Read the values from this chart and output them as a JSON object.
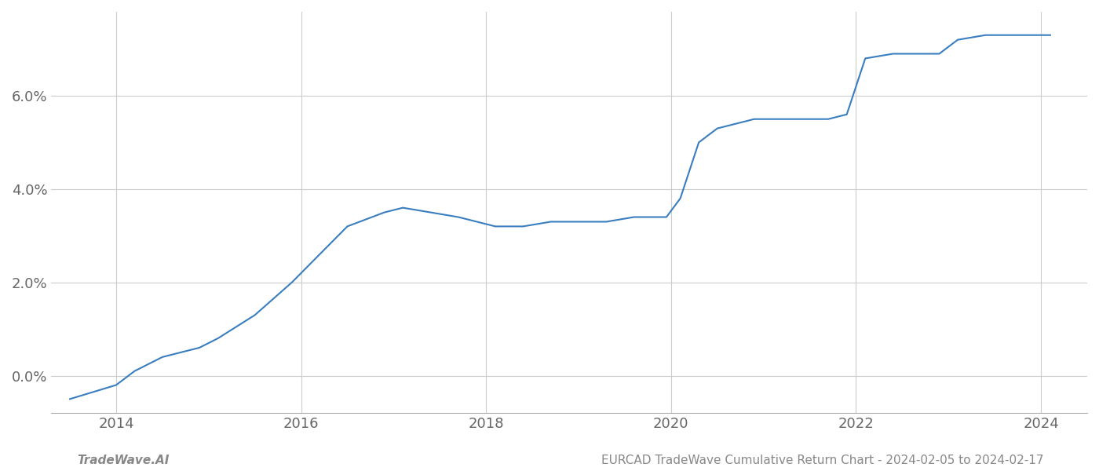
{
  "x_years": [
    2013.5,
    2014.0,
    2014.2,
    2014.5,
    2014.9,
    2015.1,
    2015.5,
    2015.9,
    2016.2,
    2016.5,
    2016.9,
    2017.1,
    2017.4,
    2017.7,
    2017.9,
    2018.1,
    2018.4,
    2018.7,
    2019.0,
    2019.3,
    2019.6,
    2019.8,
    2019.95,
    2020.1,
    2020.3,
    2020.5,
    2020.7,
    2020.9,
    2021.2,
    2021.5,
    2021.7,
    2021.9,
    2022.1,
    2022.4,
    2022.6,
    2022.9,
    2023.1,
    2023.4,
    2023.7,
    2024.0,
    2024.1
  ],
  "y_values": [
    -0.005,
    -0.002,
    0.001,
    0.004,
    0.006,
    0.008,
    0.013,
    0.02,
    0.026,
    0.032,
    0.035,
    0.036,
    0.035,
    0.034,
    0.033,
    0.032,
    0.032,
    0.033,
    0.033,
    0.033,
    0.034,
    0.034,
    0.034,
    0.038,
    0.05,
    0.053,
    0.054,
    0.055,
    0.055,
    0.055,
    0.055,
    0.056,
    0.068,
    0.069,
    0.069,
    0.069,
    0.072,
    0.073,
    0.073,
    0.073,
    0.073
  ],
  "line_color": "#3a7ebf",
  "line_width": 1.5,
  "yticks": [
    0.0,
    0.02,
    0.04,
    0.06
  ],
  "ytick_labels": [
    "0.0%",
    "2.0%",
    "4.0%",
    "6.0%"
  ],
  "xticks": [
    2014,
    2016,
    2018,
    2020,
    2022,
    2024
  ],
  "xlim": [
    2013.3,
    2024.5
  ],
  "ylim": [
    -0.008,
    0.078
  ],
  "grid_color": "#cccccc",
  "background_color": "#ffffff",
  "footer_left": "TradeWave.AI",
  "footer_right": "EURCAD TradeWave Cumulative Return Chart - 2024-02-05 to 2024-02-17",
  "footer_color": "#888888",
  "footer_fontsize": 11
}
